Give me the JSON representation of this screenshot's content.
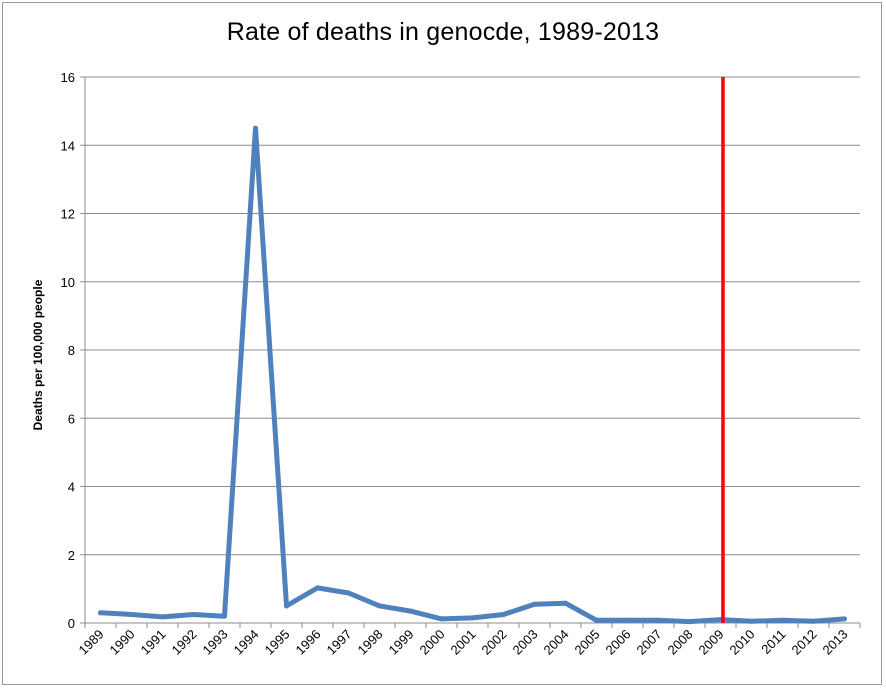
{
  "chart_data": {
    "type": "line",
    "title": "Rate of deaths in genocde, 1989-2013",
    "xlabel": "",
    "ylabel": "Deaths per 100,000 people",
    "categories": [
      "1989",
      "1990",
      "1991",
      "1992",
      "1993",
      "1994",
      "1995",
      "1996",
      "1997",
      "1998",
      "1999",
      "2000",
      "2001",
      "2002",
      "2003",
      "2004",
      "2005",
      "2006",
      "2007",
      "2008",
      "2009",
      "2010",
      "2011",
      "2012",
      "2013"
    ],
    "series": [
      {
        "values": [
          0.3,
          0.25,
          0.18,
          0.25,
          0.2,
          14.5,
          0.5,
          1.03,
          0.88,
          0.5,
          0.35,
          0.12,
          0.15,
          0.25,
          0.55,
          0.58,
          0.08,
          0.08,
          0.08,
          0.04,
          0.1,
          0.05,
          0.08,
          0.05,
          0.12
        ],
        "color": "#4f81bd"
      }
    ],
    "ylim": [
      0,
      16
    ],
    "yticks": [
      0,
      2,
      4,
      6,
      8,
      10,
      12,
      14,
      16
    ],
    "grid": true,
    "legend": "none",
    "reference_line": {
      "at_category": "2009",
      "color": "#ff0000"
    }
  }
}
